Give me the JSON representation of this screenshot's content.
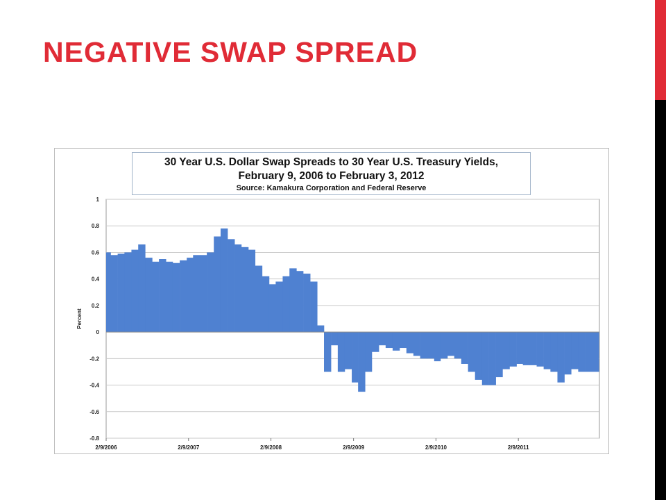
{
  "slide": {
    "title": "NEGATIVE SWAP SPREAD",
    "accent_color": "#e02b36"
  },
  "chart_data": {
    "type": "bar",
    "title": "30 Year U.S. Dollar Swap Spreads to 30 Year U.S. Treasury Yields,",
    "subtitle": "February 9, 2006 to February 3, 2012",
    "source": "Source: Kamakura Corporation and Federal Reserve",
    "xlabel": "",
    "ylabel": "Percent",
    "ylim": [
      -0.8,
      1
    ],
    "yticks": [
      "1",
      "0.8",
      "0.6",
      "0.4",
      "0.2",
      "0",
      "-0.2",
      "-0.4",
      "-0.6",
      "-0.8"
    ],
    "xtick_labels": [
      "2/9/2006",
      "2/9/2007",
      "2/9/2008",
      "2/9/2009",
      "2/9/2010",
      "2/9/2011"
    ],
    "x_range": [
      "2006-02-09",
      "2012-02-03"
    ],
    "grid": true,
    "bar_color": "#4f81d1",
    "series": [
      {
        "x": [
          "2006-02",
          "2006-03",
          "2006-04",
          "2006-05",
          "2006-06",
          "2006-07",
          "2006-08",
          "2006-09",
          "2006-10",
          "2006-11",
          "2006-12",
          "2007-01",
          "2007-02",
          "2007-03",
          "2007-04",
          "2007-05",
          "2007-06",
          "2007-07",
          "2007-08",
          "2007-09",
          "2007-10",
          "2007-11",
          "2007-12",
          "2008-01",
          "2008-02",
          "2008-03",
          "2008-04",
          "2008-05",
          "2008-06",
          "2008-07",
          "2008-08",
          "2008-09",
          "2008-10",
          "2008-11",
          "2008-12",
          "2009-01",
          "2009-02",
          "2009-03",
          "2009-04",
          "2009-05",
          "2009-06",
          "2009-07",
          "2009-08",
          "2009-09",
          "2009-10",
          "2009-11",
          "2009-12",
          "2010-01",
          "2010-02",
          "2010-03",
          "2010-04",
          "2010-05",
          "2010-06",
          "2010-07",
          "2010-08",
          "2010-09",
          "2010-10",
          "2010-11",
          "2010-12",
          "2011-01",
          "2011-02",
          "2011-03",
          "2011-04",
          "2011-05",
          "2011-06",
          "2011-07",
          "2011-08",
          "2011-09",
          "2011-10",
          "2011-11",
          "2011-12",
          "2012-01"
        ],
        "values": [
          0.6,
          0.58,
          0.59,
          0.6,
          0.62,
          0.66,
          0.56,
          0.53,
          0.55,
          0.53,
          0.52,
          0.54,
          0.56,
          0.58,
          0.58,
          0.6,
          0.72,
          0.78,
          0.7,
          0.66,
          0.64,
          0.62,
          0.5,
          0.42,
          0.36,
          0.38,
          0.42,
          0.48,
          0.46,
          0.44,
          0.38,
          0.05,
          -0.3,
          -0.1,
          -0.3,
          -0.28,
          -0.38,
          -0.45,
          -0.3,
          -0.15,
          -0.1,
          -0.12,
          -0.14,
          -0.12,
          -0.16,
          -0.18,
          -0.2,
          -0.2,
          -0.22,
          -0.2,
          -0.18,
          -0.2,
          -0.24,
          -0.3,
          -0.36,
          -0.4,
          -0.4,
          -0.34,
          -0.28,
          -0.26,
          -0.24,
          -0.25,
          -0.25,
          -0.26,
          -0.28,
          -0.3,
          -0.38,
          -0.32,
          -0.28,
          -0.3,
          -0.3,
          -0.3
        ]
      }
    ]
  }
}
